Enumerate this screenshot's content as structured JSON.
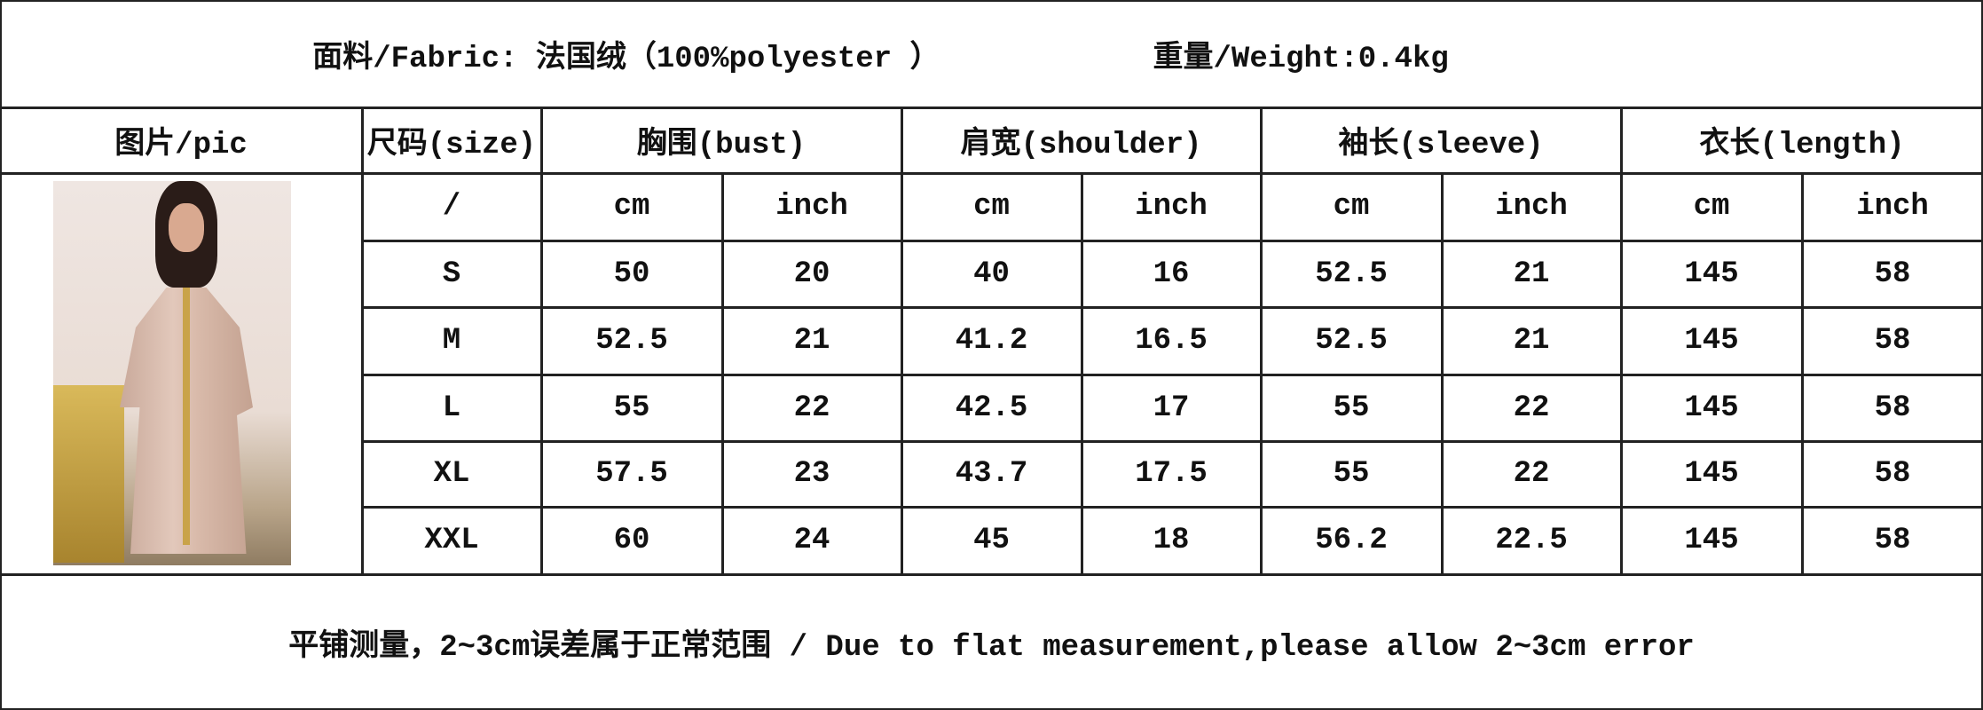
{
  "header": {
    "fabric": "面料/Fabric: 法国绒（100%polyester ）",
    "weight": "重量/Weight:0.4kg"
  },
  "columns": {
    "pic": "图片/pic",
    "size": "尺码(size)",
    "bust": "胸围(bust)",
    "shoulder": "肩宽(shoulder)",
    "sleeve": "袖长(sleeve)",
    "length": "衣长(length)"
  },
  "units": [
    "/",
    "cm",
    "inch",
    "cm",
    "inch",
    "cm",
    "inch",
    "cm",
    "inch"
  ],
  "rows": [
    [
      "S",
      "50",
      "20",
      "40",
      "16",
      "52.5",
      "21",
      "145",
      "58"
    ],
    [
      "M",
      "52.5",
      "21",
      "41.2",
      "16.5",
      "52.5",
      "21",
      "145",
      "58"
    ],
    [
      "L",
      "55",
      "22",
      "42.5",
      "17",
      "55",
      "22",
      "145",
      "58"
    ],
    [
      "XL",
      "57.5",
      "23",
      "43.7",
      "17.5",
      "55",
      "22",
      "145",
      "58"
    ],
    [
      "XXL",
      "60",
      "24",
      "45",
      "18",
      "56.2",
      "22.5",
      "145",
      "58"
    ]
  ],
  "footer": "平铺测量，2~3cm误差属于正常范围 / Due to flat measurement,please allow 2~3cm error"
}
